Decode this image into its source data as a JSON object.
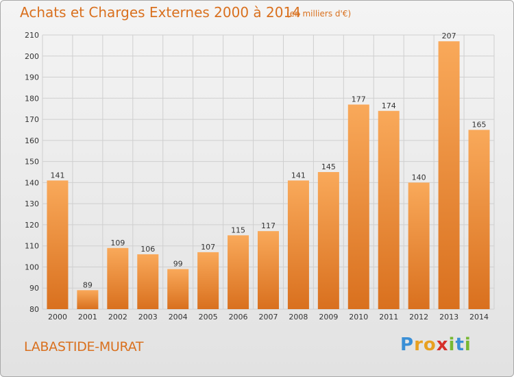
{
  "chart_data": {
    "type": "bar",
    "title": "Achats et Charges Externes 2000 à 2014",
    "subtitle": "(en milliers d'€)",
    "categories": [
      "2000",
      "2001",
      "2002",
      "2003",
      "2004",
      "2005",
      "2006",
      "2007",
      "2008",
      "2009",
      "2010",
      "2011",
      "2012",
      "2013",
      "2014"
    ],
    "values": [
      141,
      89,
      109,
      106,
      99,
      107,
      115,
      117,
      141,
      145,
      177,
      174,
      140,
      207,
      165
    ],
    "ylim": [
      80,
      210
    ],
    "yticks": [
      80,
      90,
      100,
      110,
      120,
      130,
      140,
      150,
      160,
      170,
      180,
      190,
      200,
      210
    ],
    "grid": true,
    "colors": {
      "bar_light": "#f9a95a",
      "bar_dark": "#d9701e",
      "grid": "#cfcfcf",
      "text": "#333333",
      "accent": "#d9701e"
    }
  },
  "place_label": "LABASTIDE-MURAT",
  "logo": {
    "letters": [
      "P",
      "r",
      "o",
      "x",
      "i",
      "t",
      "i"
    ],
    "colors": [
      "#3a8fd6",
      "#e8a020",
      "#e8a020",
      "#d6302a",
      "#78b833",
      "#3a8fd6",
      "#78b833"
    ]
  }
}
